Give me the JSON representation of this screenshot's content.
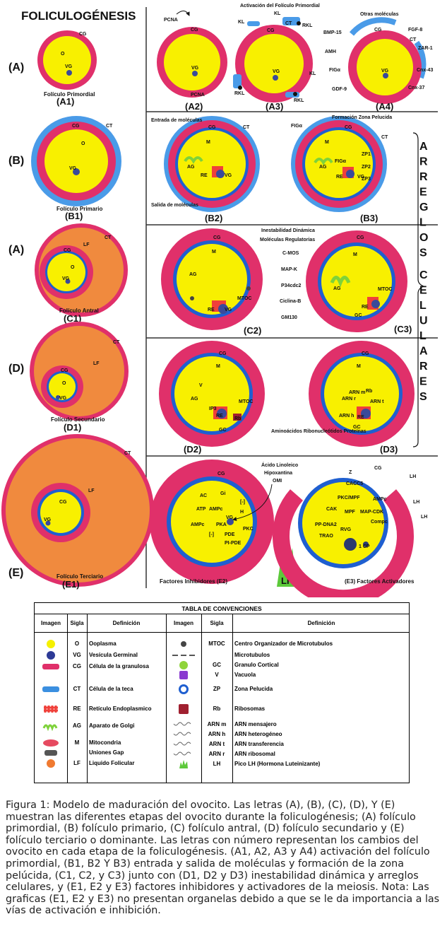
{
  "title": "FOLICULOGÉNESIS",
  "stages": {
    "A": "(A)",
    "B": "(B)",
    "A2": "(A)",
    "D": "(D)",
    "E": "(E)"
  },
  "left": {
    "a1": {
      "name": "Folículo Primordial",
      "code": "(A1)"
    },
    "b1": {
      "name": "Folículo Primario",
      "code": "(B1)"
    },
    "c1": {
      "name": "Folículo Antral",
      "code": "(C1)"
    },
    "d1": {
      "name": "Folículo Secundario",
      "code": "(D1)"
    },
    "e1": {
      "name": "Folículo Terciario",
      "code": "(E1)"
    }
  },
  "abbr": {
    "O": "O",
    "VG": "VG",
    "CG": "CG",
    "CT": "CT",
    "LF": "LF",
    "M": "M",
    "AG": "AG",
    "RE": "RE",
    "MTOC": "MTOC",
    "GC": "GC",
    "V": "V",
    "Rb": "Rb",
    "IP3": "IP3",
    "KL": "KL",
    "RKL": "RKL",
    "PCNA": "PCNA",
    "FIGa": "FIGα",
    "ZP1": "ZP1",
    "ZP2": "ZP2",
    "ZP3": "ZP3",
    "ARNm": "ARN m",
    "ARNr": "ARN r",
    "ARNt": "ARN t",
    "ARNh": "ARN h",
    "LH": "LH",
    "I": "[-]",
    "H": "H",
    "RVG": "RVG"
  },
  "panels": {
    "a2": "(A2)",
    "a3": "(A3)",
    "a4": "(A4)",
    "b2": "(B2)",
    "b3": "(B3)",
    "c2": "(C2)",
    "c3": "(C3)",
    "d2": "(D2)",
    "d3": "(D3)",
    "a3_title": "Activación del Folículo Primordial",
    "a4_title": "Otras moléculas",
    "a4_mols": [
      "BMP-15",
      "AMH",
      "FIGα",
      "GDF-9",
      "FGF-8",
      "ZAR-1",
      "Cnx-43",
      "Cnx-37"
    ],
    "b2_in": "Entrada de moléculas",
    "b2_out": "Salida de moléculas",
    "b3_title": "Formación Zona Pelucida",
    "c_title1": "Inestabilidad Dinámica",
    "c_title2": "Moléculas Regulatorias",
    "c_mols": [
      "C-MOS",
      "MAP-K",
      "P34cdc2",
      "Ciclina-B",
      "GM130"
    ],
    "d_mols": "Aminoácidos Ribonucleótidos Proteínas",
    "e2_mols": [
      "Ácido Linoleico",
      "Hipoxantina",
      "OMI"
    ],
    "e2_nodes": [
      "AC",
      "Gi",
      "ATP",
      "AMPc",
      "PKA",
      "PDE",
      "PKC",
      "PI-PDE",
      "AMPc"
    ],
    "e3_nodes": [
      "CACC5",
      "PKC/MPF",
      "CAK",
      "MPF",
      "MAP-CDK",
      "AMPc",
      "RVG",
      "PP-DNA2",
      "TRAO",
      "1 CP",
      "Compc",
      "Z"
    ],
    "e2": "Factores Inhibidores (E2)",
    "e3": "(E3) Factores Activadores",
    "vertical": "ARREGLOS CELULARES"
  },
  "table": {
    "title": "TABLA DE CONVENCIONES",
    "headers": [
      "Imagen",
      "Sigla",
      "Definición",
      "Imagen",
      "Sigla",
      "Definición"
    ],
    "left": [
      {
        "sigla": "O",
        "def": "Ooplasma",
        "icon": "yellow-circle",
        "color": "#f5f000"
      },
      {
        "sigla": "VG",
        "def": "Vesícula Germinal",
        "icon": "blue-circle",
        "color": "#2d3a96"
      },
      {
        "sigla": "CG",
        "def": "Célula de la granulosa",
        "icon": "pink-cell",
        "color": "#e0306a"
      },
      {
        "sigla": "CT",
        "def": "Célula de la teca",
        "icon": "blue-cell",
        "color": "#3b8fe0"
      },
      {
        "sigla": "RE",
        "def": "Retículo Endoplasmico",
        "icon": "red-reticulum",
        "color": "#f0403a"
      },
      {
        "sigla": "AG",
        "def": "Aparato de Golgi",
        "icon": "green-golgi",
        "color": "#7ed23a"
      },
      {
        "sigla": "M",
        "def": "Mitocondria",
        "icon": "pink-oval",
        "color": "#e64a60"
      },
      {
        "sigla": "",
        "def": "Uniones Gap",
        "icon": "gray-block",
        "color": "#555"
      },
      {
        "sigla": "LF",
        "def": "Liquido Folicular",
        "icon": "orange-circle",
        "color": "#f07a30"
      }
    ],
    "right": [
      {
        "sigla": "MTOC",
        "def": "Centro Organizador de Microtubulos",
        "icon": "dark-dot",
        "color": "#444"
      },
      {
        "sigla": "",
        "def": "Microtubulos",
        "icon": "dashes",
        "color": "#555"
      },
      {
        "sigla": "GC",
        "def": "Granulo Cortical",
        "icon": "green-circle",
        "color": "#8fd43a"
      },
      {
        "sigla": "V",
        "def": "Vacuola",
        "icon": "purple-square",
        "color": "#8a3ad0"
      },
      {
        "sigla": "ZP",
        "def": "Zona Pelucida",
        "icon": "blue-ring",
        "color": "#1f5fd0"
      },
      {
        "sigla": "Rb",
        "def": "Ribosomas",
        "icon": "red-cluster",
        "color": "#a02030"
      },
      {
        "sigla": "ARN m",
        "def": "ARN mensajero",
        "icon": "wave",
        "color": "#666"
      },
      {
        "sigla": "ARN h",
        "def": "ARN heterogéneo",
        "icon": "wave",
        "color": "#666"
      },
      {
        "sigla": "ARN t",
        "def": "ARN transferencia",
        "icon": "wave",
        "color": "#666"
      },
      {
        "sigla": "ARN r",
        "def": "ARN ribosomal",
        "icon": "wave",
        "color": "#666"
      },
      {
        "sigla": "LH",
        "def": "Pico LH (Hormona Luteinizante)",
        "icon": "green-peak",
        "color": "#5cc93a"
      }
    ]
  },
  "caption": "Figura 1: Modelo de maduración del ovocito. Las letras (A), (B), (C), (D), Y (E) muestran las diferentes etapas del ovocito durante la foliculogénesis; (A) folículo primordial, (B) folículo primario, (C) folículo antral, (D) folículo secundario y (E) folículo terciario o dominante. Las letras con número representan los cambios del ovocito en cada etapa de la foliculogénesis. (A1, A2, A3 y A4) activación del folículo primordial, (B1, B2 Y B3) entrada y salida de moléculas y formación de la zona pelúcida, (C1, C2, y C3) junto con (D1, D2 y D3) inestabilidad dinámica y arreglos celulares, y (E1, E2 y E3) factores inhibidores y activadores de la meiosis. Nota: Las graficas (E1, E2 y E3) no presentan organelas debido a que se le da importancia a las vías de activación e inhibición.",
  "colors": {
    "pink": "#e0306a",
    "yellow": "#f8f000",
    "blue": "#1f5fd0",
    "teca": "#4a9be8",
    "orange": "#f08a3e",
    "vg": "#3a4a9a"
  }
}
